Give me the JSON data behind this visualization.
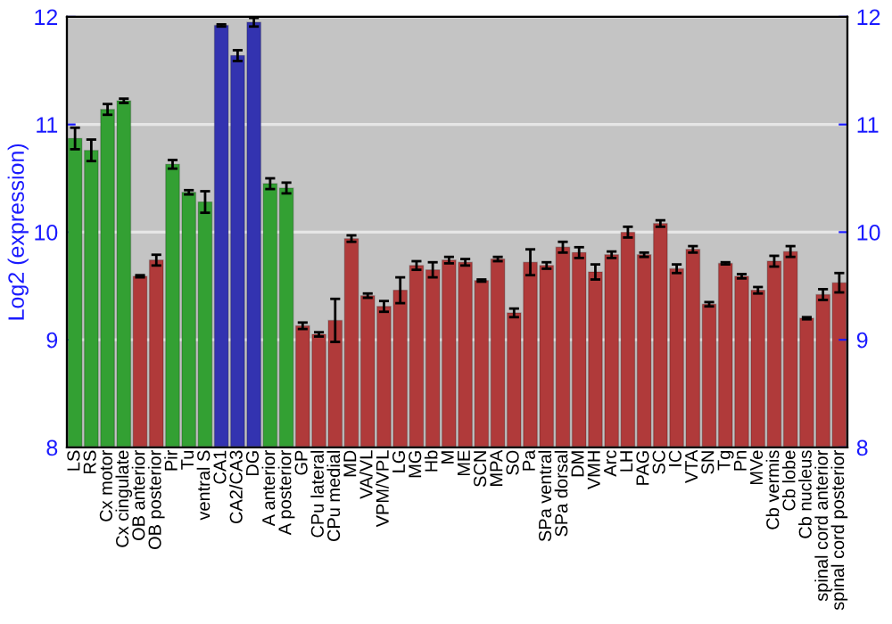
{
  "chart_data": {
    "type": "bar",
    "ylabel": "Log2 (expression)",
    "categories": [
      "LS",
      "RS",
      "Cx motor",
      "Cx cingulate",
      "OB anterior",
      "OB posterior",
      "Pir",
      "Tu",
      "ventral S",
      "CA1",
      "CA2/CA3",
      "DG",
      "A anterior",
      "A posterior",
      "GP",
      "CPu lateral",
      "CPu medial",
      "MD",
      "VA/VL",
      "VPM/VPL",
      "LG",
      "MG",
      "Hb",
      "M",
      "ME",
      "SCN",
      "MPA",
      "SO",
      "Pa",
      "SPa ventral",
      "SPa dorsal",
      "DM",
      "VMH",
      "Arc",
      "LH",
      "PAG",
      "SC",
      "IC",
      "VTA",
      "SN",
      "Tg",
      "Pn",
      "MVe",
      "Cb vermis",
      "Cb lobe",
      "Cb nucleus",
      "spinal cord anterior",
      "spinal cord posterior"
    ],
    "values": [
      10.87,
      10.76,
      11.14,
      11.22,
      9.59,
      9.74,
      10.63,
      10.37,
      10.28,
      11.92,
      11.64,
      11.95,
      10.45,
      10.41,
      9.13,
      9.05,
      9.18,
      9.94,
      9.41,
      9.31,
      9.46,
      9.69,
      9.65,
      9.74,
      9.72,
      9.55,
      9.75,
      9.25,
      9.72,
      9.69,
      9.86,
      9.81,
      9.63,
      9.79,
      10.0,
      9.79,
      10.08,
      9.66,
      9.84,
      9.33,
      9.71,
      9.59,
      9.46,
      9.73,
      9.82,
      9.2,
      9.42,
      9.53
    ],
    "errors": [
      0.1,
      0.1,
      0.05,
      0.02,
      0.01,
      0.05,
      0.04,
      0.02,
      0.1,
      0.01,
      0.05,
      0.04,
      0.05,
      0.05,
      0.03,
      0.02,
      0.2,
      0.03,
      0.02,
      0.05,
      0.12,
      0.04,
      0.07,
      0.03,
      0.03,
      0.01,
      0.02,
      0.04,
      0.12,
      0.03,
      0.05,
      0.05,
      0.07,
      0.03,
      0.05,
      0.02,
      0.03,
      0.04,
      0.03,
      0.02,
      0.01,
      0.02,
      0.03,
      0.05,
      0.05,
      0.01,
      0.05,
      0.09
    ],
    "colors": [
      "#33a033",
      "#33a033",
      "#33a033",
      "#33a033",
      "#b03a3a",
      "#b03a3a",
      "#33a033",
      "#33a033",
      "#33a033",
      "#3333b0",
      "#3333b0",
      "#3333b0",
      "#33a033",
      "#33a033",
      "#b03a3a",
      "#b03a3a",
      "#b03a3a",
      "#b03a3a",
      "#b03a3a",
      "#b03a3a",
      "#b03a3a",
      "#b03a3a",
      "#b03a3a",
      "#b03a3a",
      "#b03a3a",
      "#b03a3a",
      "#b03a3a",
      "#b03a3a",
      "#b03a3a",
      "#b03a3a",
      "#b03a3a",
      "#b03a3a",
      "#b03a3a",
      "#b03a3a",
      "#b03a3a",
      "#b03a3a",
      "#b03a3a",
      "#b03a3a",
      "#b03a3a",
      "#b03a3a",
      "#b03a3a",
      "#b03a3a",
      "#b03a3a",
      "#b03a3a",
      "#b03a3a",
      "#b03a3a",
      "#b03a3a",
      "#b03a3a"
    ],
    "ylim": [
      8,
      12
    ],
    "yticks": [
      8,
      9,
      10,
      11,
      12
    ],
    "y2lim": [
      8,
      12
    ],
    "y2ticks": [
      8,
      9,
      10,
      11,
      12
    ],
    "grid": "y",
    "legend": false
  }
}
